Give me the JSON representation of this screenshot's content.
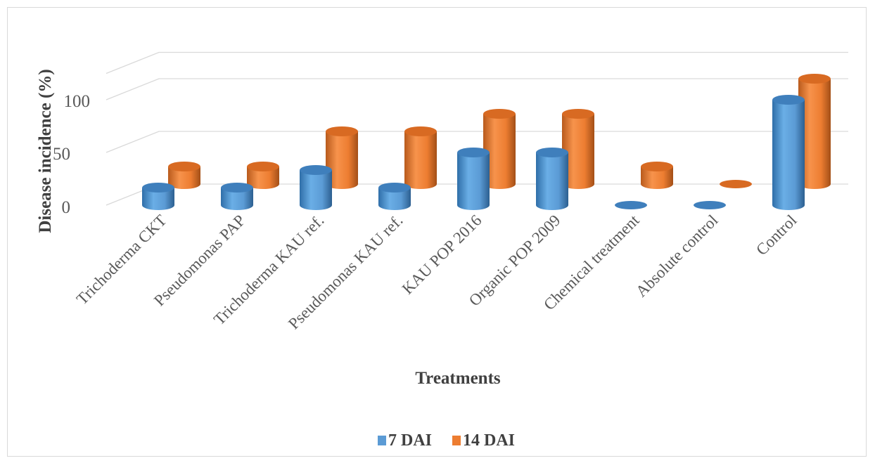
{
  "chart_data": {
    "type": "bar",
    "style": "3d-cylinder",
    "title": "",
    "xlabel": "Treatments",
    "ylabel": "Disease incidence (%)",
    "ylim": [
      0,
      100
    ],
    "yticks": [
      "0",
      "50",
      "100"
    ],
    "grid": true,
    "legend_position": "bottom",
    "categories": [
      "Trichoderma CKT",
      "Pseudomonas PAP",
      "Trichoderma KAU ref.",
      "Pseudomonas KAU ref.",
      "KAU POP 2016",
      "Organic POP 2009",
      "Chemical treatment",
      "Absolute control",
      "Control"
    ],
    "series": [
      {
        "name": "7 DAI",
        "color": "#5b9bd5",
        "values": [
          16.67,
          16.67,
          33.33,
          16.67,
          50,
          50,
          0,
          0,
          100
        ]
      },
      {
        "name": "14 DAI",
        "color": "#ed7d31",
        "values": [
          16.67,
          16.67,
          50,
          50,
          66.67,
          66.67,
          16.67,
          0,
          100
        ]
      }
    ]
  }
}
